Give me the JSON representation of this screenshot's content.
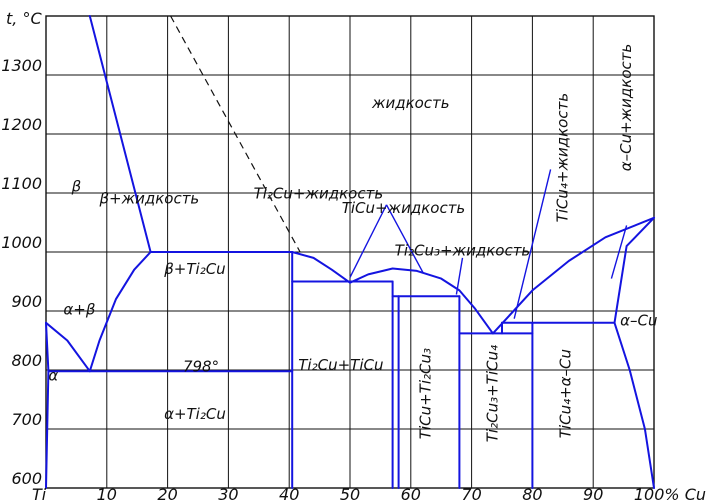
{
  "axes": {
    "x_unit": "% Cu",
    "y_unit": "t, °C",
    "x_range": [
      0,
      100
    ],
    "y_range": [
      600,
      1400
    ],
    "x_ticks": [
      {
        "value": 0,
        "label": "Ti"
      },
      {
        "value": 10,
        "label": "10"
      },
      {
        "value": 20,
        "label": "20"
      },
      {
        "value": 30,
        "label": "30"
      },
      {
        "value": 40,
        "label": "40"
      },
      {
        "value": 50,
        "label": "50"
      },
      {
        "value": 60,
        "label": "60"
      },
      {
        "value": 70,
        "label": "70"
      },
      {
        "value": 80,
        "label": "80"
      },
      {
        "value": 90,
        "label": "90"
      },
      {
        "value": 100,
        "label": "100% Cu"
      }
    ],
    "y_ticks": [
      {
        "value": 600,
        "label": "600"
      },
      {
        "value": 700,
        "label": "700"
      },
      {
        "value": 800,
        "label": "800"
      },
      {
        "value": 900,
        "label": "900"
      },
      {
        "value": 1000,
        "label": "1000"
      },
      {
        "value": 1100,
        "label": "1100"
      },
      {
        "value": 1200,
        "label": "1200"
      },
      {
        "value": 1300,
        "label": "1300"
      }
    ],
    "y_axis_label": "t, °C",
    "grid": true
  },
  "phase_lines": [
    {
      "name": "liquidus-beta",
      "points": [
        [
          7.2,
          1400
        ],
        [
          17.2,
          1000
        ]
      ]
    },
    {
      "name": "beta-transus-left",
      "points": [
        [
          0,
          880
        ],
        [
          3.5,
          850
        ],
        [
          7.2,
          798
        ]
      ]
    },
    {
      "name": "beta-transus-right",
      "points": [
        [
          7.2,
          798
        ],
        [
          8.8,
          850
        ],
        [
          11.5,
          920
        ],
        [
          14.5,
          970
        ],
        [
          17.2,
          1000
        ]
      ]
    },
    {
      "name": "peritectic-1000",
      "points": [
        [
          17.2,
          1000
        ],
        [
          40.5,
          1000
        ]
      ]
    },
    {
      "name": "liquidus-ti2cu",
      "points": [
        [
          40.5,
          1000
        ],
        [
          44,
          990
        ],
        [
          47,
          970
        ],
        [
          50,
          948
        ]
      ]
    },
    {
      "name": "liquidus-ticu",
      "points": [
        [
          50,
          948
        ],
        [
          53,
          962
        ],
        [
          57,
          972
        ],
        [
          61,
          968
        ],
        [
          65,
          955
        ],
        [
          68,
          935
        ],
        [
          70.5,
          905
        ],
        [
          73.5,
          862
        ]
      ]
    },
    {
      "name": "liquidus-cu-left",
      "points": [
        [
          73.5,
          862
        ],
        [
          76,
          890
        ],
        [
          80,
          935
        ],
        [
          86,
          985
        ],
        [
          92,
          1025
        ],
        [
          100,
          1058
        ]
      ]
    },
    {
      "name": "eutectic-950",
      "points": [
        [
          40.5,
          950
        ],
        [
          57,
          950
        ]
      ]
    },
    {
      "name": "ti2cu-right-boundary",
      "points": [
        [
          40.5,
          1000
        ],
        [
          40.5,
          600
        ]
      ]
    },
    {
      "name": "ti3cu4-line",
      "points": [
        [
          57,
          925
        ],
        [
          68,
          925
        ]
      ]
    },
    {
      "name": "ticu-right-boundary",
      "points": [
        [
          57,
          950
        ],
        [
          57,
          600
        ]
      ]
    },
    {
      "name": "ti3cu4-left",
      "points": [
        [
          58,
          925
        ],
        [
          58,
          600
        ]
      ]
    },
    {
      "name": "ti3cu4-right",
      "points": [
        [
          68,
          925
        ],
        [
          68,
          600
        ]
      ]
    },
    {
      "name": "eutectic-860",
      "points": [
        [
          68,
          862
        ],
        [
          80,
          862
        ]
      ]
    },
    {
      "name": "ticu4-left",
      "points": [
        [
          80,
          880
        ],
        [
          80,
          600
        ]
      ]
    },
    {
      "name": "eutectic-880",
      "points": [
        [
          75,
          880
        ],
        [
          93.5,
          880
        ]
      ]
    },
    {
      "name": "solidus-cu",
      "points": [
        [
          100,
          1058
        ],
        [
          95.5,
          1010
        ],
        [
          93.5,
          880
        ]
      ]
    },
    {
      "name": "solvus-cu",
      "points": [
        [
          93.5,
          880
        ],
        [
          96,
          800
        ],
        [
          98.5,
          700
        ],
        [
          100,
          600
        ]
      ]
    },
    {
      "name": "eutectoid-798",
      "points": [
        [
          0.4,
          798
        ],
        [
          40.5,
          798
        ]
      ]
    },
    {
      "name": "alpha-solvus",
      "points": [
        [
          0,
          880
        ],
        [
          0.4,
          798
        ],
        [
          0.2,
          700
        ],
        [
          0,
          600
        ]
      ]
    },
    {
      "name": "ticu4-eutectic-stub",
      "points": [
        [
          75,
          880
        ],
        [
          75,
          862
        ]
      ]
    }
  ],
  "dashed_line": {
    "name": "metastable-liquidus",
    "points": [
      [
        20.5,
        1400
      ],
      [
        41.8,
        1000
      ]
    ]
  },
  "pointers": [
    {
      "name": "pointer-ticu-liquid",
      "points": [
        [
          56,
          1080
        ],
        [
          50,
          957
        ]
      ]
    },
    {
      "name": "pointer-ticu-liquid-2",
      "points": [
        [
          56,
          1080
        ],
        [
          62,
          965
        ]
      ]
    },
    {
      "name": "pointer-ti3cu4-liquid",
      "points": [
        [
          68.5,
          990
        ],
        [
          67.5,
          928
        ]
      ]
    },
    {
      "name": "pointer-ticu4-liquid",
      "points": [
        [
          83,
          1140
        ],
        [
          77,
          887
        ]
      ]
    },
    {
      "name": "pointer-cu-liquid",
      "points": [
        [
          95.5,
          1045
        ],
        [
          93,
          955
        ]
      ]
    }
  ],
  "region_labels": [
    {
      "name": "liquid",
      "text": "жидкость",
      "x": 60,
      "y": 1252,
      "rotate": 0
    },
    {
      "name": "beta",
      "text": "β",
      "x": 5,
      "y": 1110,
      "rotate": 0
    },
    {
      "name": "beta-liquid",
      "text": "β+жидкость",
      "x": 17,
      "y": 1090,
      "rotate": 0
    },
    {
      "name": "ti2cu-liquid",
      "text": "Ti₂Cu+жидкость",
      "x": 44.8,
      "y": 1098,
      "rotate": 0
    },
    {
      "name": "ticu-liquid",
      "text": "TiCu+жидкость",
      "x": 58.8,
      "y": 1074,
      "rotate": 0
    },
    {
      "name": "ti3cu4-liquid",
      "text": "Ti₂Cu₃+жидкость",
      "x": 68.5,
      "y": 1002,
      "rotate": 0
    },
    {
      "name": "ticu4-liquid",
      "text": "TiCu₄+жидкость",
      "x": 85,
      "y": 1160,
      "rotate": -90
    },
    {
      "name": "alpha-cu-liquid",
      "text": "α–Cu+жидкость",
      "x": 95.5,
      "y": 1245,
      "rotate": -90
    },
    {
      "name": "beta-ti2cu",
      "text": "β+Ti₂Cu",
      "x": 24.5,
      "y": 970,
      "rotate": 0
    },
    {
      "name": "alpha-beta",
      "text": "α+β",
      "x": 5.5,
      "y": 902,
      "rotate": 0
    },
    {
      "name": "temp-798",
      "text": "798°",
      "x": 25.5,
      "y": 805,
      "rotate": 0
    },
    {
      "name": "ti2cu-ticu",
      "text": "Ti₂Cu+TiCu",
      "x": 48.5,
      "y": 808,
      "rotate": 0
    },
    {
      "name": "alpha-ti2cu",
      "text": "α+Ti₂Cu",
      "x": 24.5,
      "y": 725,
      "rotate": 0
    },
    {
      "name": "ticu-ti3cu4",
      "text": "TiCu+Ti₂Cu₃",
      "x": 62.5,
      "y": 760,
      "rotate": -90
    },
    {
      "name": "ti3cu4-ticu4",
      "text": "Ti₂Cu₃+TiCu₄",
      "x": 73.5,
      "y": 760,
      "rotate": -90
    },
    {
      "name": "ticu4-alpha-cu",
      "text": "TiCu₄+α–Cu",
      "x": 85.5,
      "y": 760,
      "rotate": -90
    },
    {
      "name": "alpha-cu",
      "text": "α–Cu",
      "x": 97.5,
      "y": 883,
      "rotate": 0
    },
    {
      "name": "alpha",
      "text": "α",
      "x": 1.2,
      "y": 790,
      "rotate": 0
    }
  ]
}
